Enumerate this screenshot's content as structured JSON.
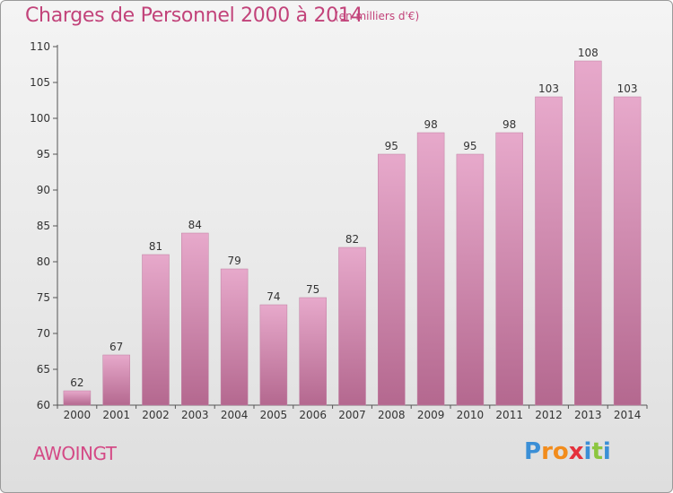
{
  "header": {
    "title": "Charges de Personnel 2000 à 2014",
    "unit": "(en milliers d'€)"
  },
  "footer": {
    "commune": "AWOINGT",
    "logo": {
      "letters": [
        "P",
        "r",
        "o",
        "x",
        "i",
        "t",
        "i"
      ],
      "colors": [
        "#3b8fd6",
        "#f28c1c",
        "#f28c1c",
        "#e5313c",
        "#3b8fd6",
        "#8cc63f",
        "#3b8fd6"
      ]
    }
  },
  "chart_data": {
    "type": "bar",
    "title": "Charges de Personnel 2000 à 2014",
    "subtitle": "(en milliers d'€)",
    "categories": [
      "2000",
      "2001",
      "2002",
      "2003",
      "2004",
      "2005",
      "2006",
      "2007",
      "2008",
      "2009",
      "2010",
      "2011",
      "2012",
      "2013",
      "2014"
    ],
    "values": [
      62,
      67,
      81,
      84,
      79,
      74,
      75,
      82,
      95,
      98,
      95,
      98,
      103,
      108,
      103
    ],
    "ylim": [
      60,
      110
    ],
    "yticks": [
      60,
      65,
      70,
      75,
      80,
      85,
      90,
      95,
      100,
      105,
      110
    ],
    "xlabel": "",
    "ylabel": "",
    "bar_color": "#d98bb3",
    "grid": false,
    "data_labels": true
  }
}
